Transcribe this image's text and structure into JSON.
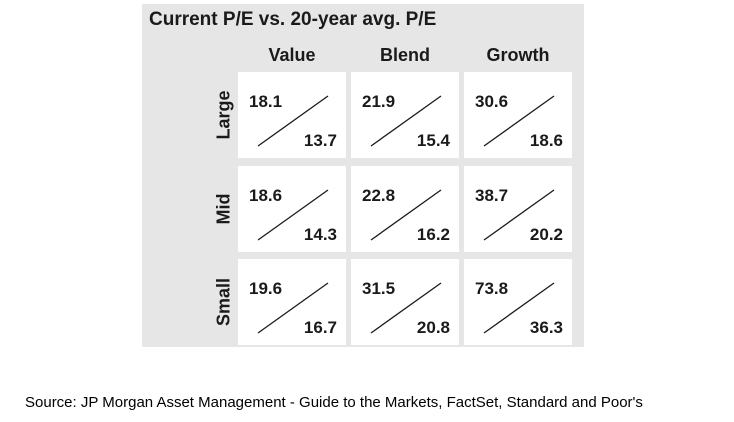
{
  "chart_data": {
    "type": "table",
    "title": "Current P/E vs. 20-year avg. P/E",
    "columns": [
      "Value",
      "Blend",
      "Growth"
    ],
    "rows": [
      "Large",
      "Mid",
      "Small"
    ],
    "current_pe": [
      [
        "18.1",
        "21.9",
        "30.6"
      ],
      [
        "18.6",
        "22.8",
        "38.7"
      ],
      [
        "19.6",
        "31.5",
        "73.8"
      ]
    ],
    "avg_20yr_pe": [
      [
        "13.7",
        "15.4",
        "18.6"
      ],
      [
        "14.3",
        "16.2",
        "20.2"
      ],
      [
        "16.7",
        "20.8",
        "36.3"
      ]
    ]
  },
  "source": "Source:  JP Morgan Asset Management - Guide to the Markets, FactSet, Standard and Poor's",
  "colors": {
    "panel_background": "#e6e6e6",
    "cell_background": "#ffffff",
    "text": "#1a1a1a"
  }
}
